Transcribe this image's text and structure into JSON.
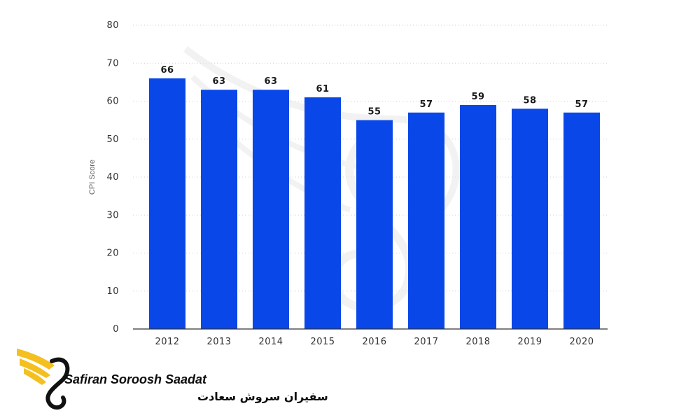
{
  "chart_data": {
    "type": "bar",
    "title": "",
    "xlabel": "",
    "ylabel": "CPI Score",
    "categories": [
      "2012",
      "2013",
      "2014",
      "2015",
      "2016",
      "2017",
      "2018",
      "2019",
      "2020"
    ],
    "values": [
      66,
      63,
      63,
      61,
      55,
      57,
      59,
      58,
      57
    ],
    "data_labels": [
      "66",
      "63",
      "63",
      "61",
      "55",
      "57",
      "59",
      "58",
      "57"
    ],
    "ylim": [
      0,
      80
    ],
    "yticks": [
      0,
      10,
      20,
      30,
      40,
      50,
      60,
      70,
      80
    ],
    "ytick_labels": [
      "0",
      "10",
      "20",
      "30",
      "40",
      "50",
      "60",
      "70",
      "80"
    ],
    "grid": true,
    "bar_color": "#0a47e8"
  },
  "logo": {
    "name_en": "Safiran Soroosh Saadat",
    "name_fa": "سفیران سروش سعادت",
    "accent_color": "#f4c020"
  }
}
